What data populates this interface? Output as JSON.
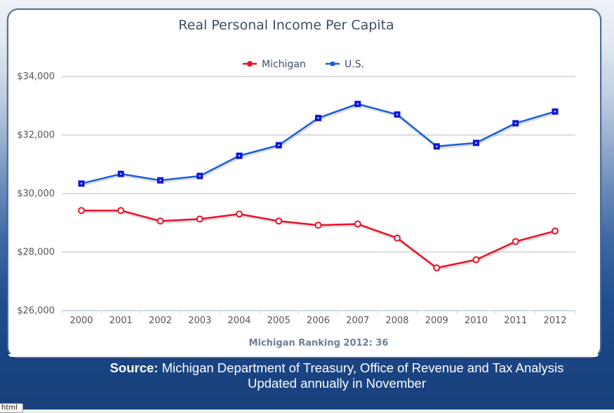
{
  "chart_data": {
    "type": "line",
    "title": "Real Personal Income Per Capita",
    "subtitle": "Michigan Ranking 2012: 36",
    "xlabel": "",
    "ylabel": "",
    "categories": [
      "2000",
      "2001",
      "2002",
      "2003",
      "2004",
      "2005",
      "2006",
      "2007",
      "2008",
      "2009",
      "2010",
      "2011",
      "2012"
    ],
    "ylim": [
      26000,
      34000
    ],
    "yticks": [
      26000,
      28000,
      30000,
      32000,
      34000
    ],
    "ytick_labels": [
      "$26,000",
      "$28,000",
      "$30,000",
      "$32,000",
      "$34,000"
    ],
    "grid": true,
    "legend_position": "top-center",
    "series": [
      {
        "name": "Michigan",
        "color": "#e8122a",
        "marker": "circle-hollow",
        "values": [
          29420,
          29420,
          29060,
          29130,
          29300,
          29060,
          28920,
          28960,
          28480,
          27460,
          27740,
          28360,
          28720
        ]
      },
      {
        "name": "U.S.",
        "color": "#1a5fd8",
        "marker_color": "#0a14e0",
        "marker": "square",
        "values": [
          30340,
          30670,
          30450,
          30600,
          31290,
          31650,
          32580,
          33060,
          32700,
          31610,
          31730,
          32400,
          32800
        ]
      }
    ]
  },
  "footer": {
    "source_label": "Source:",
    "source_text": " Michigan Department of Treasury, Office of Revenue and Tax Analysis",
    "update_note": "Updated annually in November"
  },
  "status_tab": "html"
}
